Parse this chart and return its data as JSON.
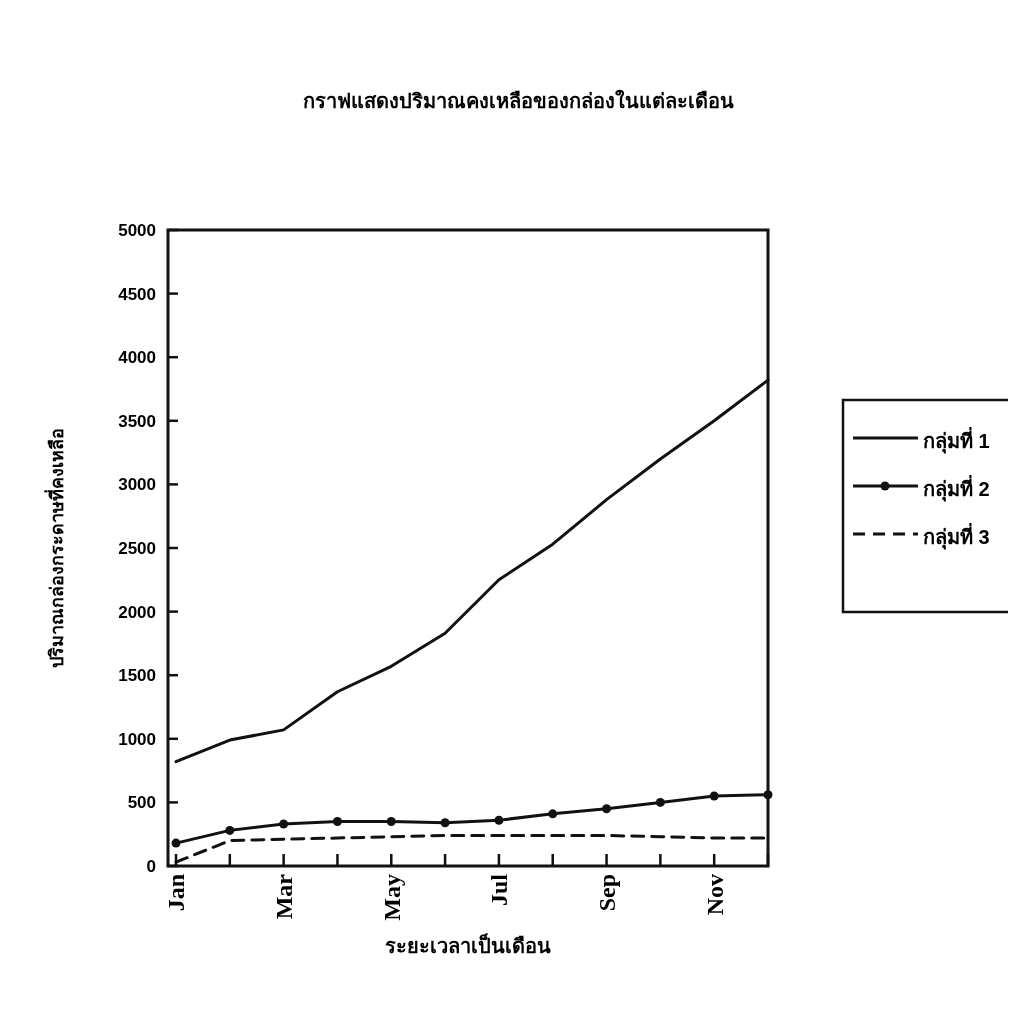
{
  "chart_data": {
    "type": "line",
    "title": "กราฟแสดงปริมาณคงเหลือของกล่องในแต่ละเดือน",
    "xlabel": "ระยะเวลาเป็นเดือน",
    "ylabel": "ปริมาณกล่องกระดาษที่คงเหลือ",
    "categories": [
      "Jan",
      null,
      "Mar",
      null,
      "May",
      null,
      "Jul",
      null,
      "Sep",
      null,
      "Nov",
      null
    ],
    "series": [
      {
        "name": "กลุ่มที่ 1",
        "color": "#111111",
        "values": [
          820,
          990,
          1070,
          1370,
          1570,
          1830,
          2250,
          2530,
          2880,
          3200,
          3500,
          3820
        ],
        "marker": "none",
        "line_style": "solid"
      },
      {
        "name": "กลุ่มที่ 2",
        "color": "#111111",
        "values": [
          180,
          280,
          330,
          350,
          350,
          340,
          360,
          410,
          450,
          500,
          550,
          560
        ],
        "marker": "circle",
        "line_style": "solid"
      },
      {
        "name": "กลุ่มที่ 3",
        "color": "#111111",
        "values": [
          30,
          200,
          210,
          220,
          230,
          240,
          240,
          240,
          240,
          230,
          220,
          220
        ],
        "marker": "none",
        "line_style": "dashed"
      }
    ],
    "ylim": [
      0,
      5000
    ],
    "yticks": [
      0,
      500,
      1000,
      1500,
      2000,
      2500,
      3000,
      3500,
      4000,
      4500,
      5000
    ],
    "grid": false,
    "legend": "right"
  }
}
